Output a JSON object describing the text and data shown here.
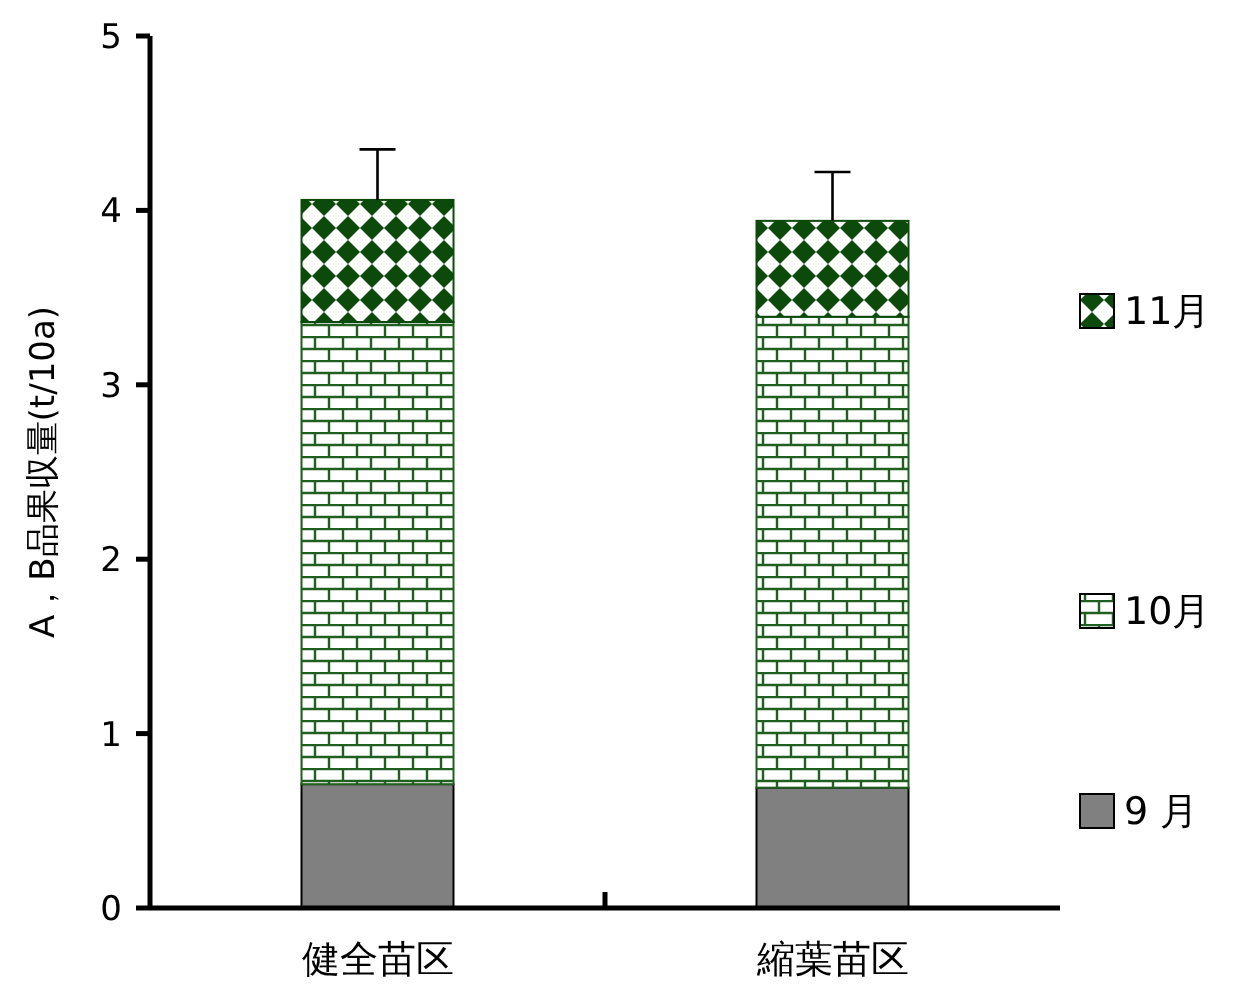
{
  "chart_data": {
    "type": "bar",
    "stacked": true,
    "ylabel": "A，B品果収量(t/10a)",
    "categories": [
      "健全苗区",
      "縮葉苗区"
    ],
    "ylim": [
      0,
      5
    ],
    "yticks": [
      0,
      1,
      2,
      3,
      4,
      5
    ],
    "legend": "right",
    "grid": false,
    "series": [
      {
        "name": "9 月",
        "color": "#808080",
        "values": [
          0.71,
          0.69
        ]
      },
      {
        "name": "10月",
        "color": "#1f5f1f",
        "values": [
          2.65,
          2.7
        ]
      },
      {
        "name": "11月",
        "color": "#0b4a0b",
        "values": [
          0.7,
          0.55
        ],
        "errors": [
          [
            4.06,
            4.35
          ],
          [
            3.94,
            4.22
          ]
        ]
      }
    ]
  }
}
